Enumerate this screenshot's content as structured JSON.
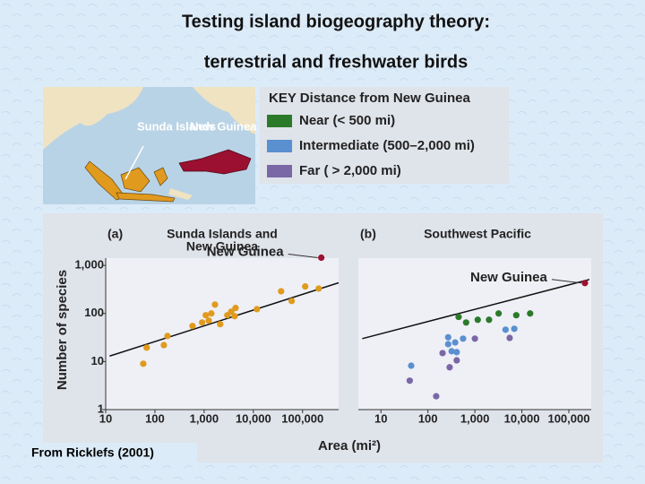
{
  "title": "Testing island biogeography theory:",
  "subtitle": "terrestrial and freshwater birds",
  "map": {
    "labels": [
      "Sunda Islands",
      "New Guinea"
    ]
  },
  "key": {
    "title": "KEY  Distance from New Guinea",
    "entries": [
      {
        "label": "Near (< 500 mi)",
        "color": "#2a7a2a"
      },
      {
        "label": "Intermediate (500–2,000 mi)",
        "color": "#5a8fd0"
      },
      {
        "label": "Far ( > 2,000 mi)",
        "color": "#7a67a6"
      }
    ]
  },
  "axis_labels": {
    "x": "Area (mi²)",
    "y": "Number of species"
  },
  "footer": "From Ricklefs (2001)",
  "chart_data": [
    {
      "type": "scatter",
      "panel": "(a)",
      "title": [
        "Sunda Islands and",
        "New Guinea"
      ],
      "annotation": "New Guinea",
      "log_x": true,
      "log_y": true,
      "xlim": [
        10,
        540000
      ],
      "ylim": [
        1,
        2000
      ],
      "xticks": [
        10,
        100,
        {
          "value": 1000,
          "label": "1,000"
        },
        {
          "value": 10000,
          "label": "10,000"
        },
        {
          "value": 100000,
          "label": "100,000"
        }
      ],
      "yticks": [
        1,
        10,
        100,
        {
          "value": 1000,
          "label": "1,000"
        }
      ],
      "fit": {
        "x": [
          12,
          540000
        ],
        "values": [
          13,
          435
        ]
      },
      "series": [
        {
          "color": "#e09a1e",
          "x": [
            58,
            68,
            152,
            180,
            580,
            910,
            1080,
            1400,
            1240,
            1660,
            2120,
            2960,
            3540,
            4350,
            4170,
            11800,
            36600,
            60000,
            113000,
            213000
          ],
          "values": [
            9,
            19.5,
            22,
            34,
            55,
            65,
            92,
            100,
            71,
            153,
            60,
            92,
            109,
            130,
            88,
            123,
            290,
            182,
            365,
            330
          ]
        },
        {
          "color": "#9b1030",
          "x": [
            240000
          ],
          "values": [
            1450
          ]
        }
      ]
    },
    {
      "type": "scatter",
      "panel": "(b)",
      "title": [
        "Southwest Pacific"
      ],
      "annotation": "New Guinea",
      "log_x": true,
      "log_y": true,
      "xlim": [
        3.3,
        300000
      ],
      "ylim": [
        1,
        2000
      ],
      "xticks": [
        10,
        100,
        {
          "value": 1000,
          "label": "1,000"
        },
        {
          "value": 10000,
          "label": "10,000"
        },
        {
          "value": 100000,
          "label": "100,000"
        }
      ],
      "fit": {
        "x": [
          4,
          275000
        ],
        "values": [
          30,
          510
        ]
      },
      "series": [
        {
          "name": "Near (< 500 mi)",
          "color": "#2a7a2a",
          "x": [
            450,
            650,
            1150,
            2000,
            3200,
            7600,
            15000
          ],
          "values": [
            85,
            65,
            74,
            74,
            100,
            92,
            100
          ]
        },
        {
          "name": "Intermediate (500–2,000 mi)",
          "color": "#5a8fd0",
          "x": [
            44,
            270,
            270,
            320,
            410,
            560,
            380,
            4500,
            6900
          ],
          "values": [
            8.2,
            32,
            23,
            16.4,
            15.7,
            30,
            25,
            46,
            48
          ]
        },
        {
          "name": "Far ( > 2,000 mi)",
          "color": "#7a67a6",
          "x": [
            41,
            150,
            205,
            290,
            410,
            1000,
            5500
          ],
          "values": [
            4,
            1.9,
            15,
            7.6,
            10.6,
            30,
            31
          ]
        },
        {
          "color": "#9b1030",
          "x": [
            220000
          ],
          "values": [
            430
          ]
        }
      ]
    }
  ]
}
